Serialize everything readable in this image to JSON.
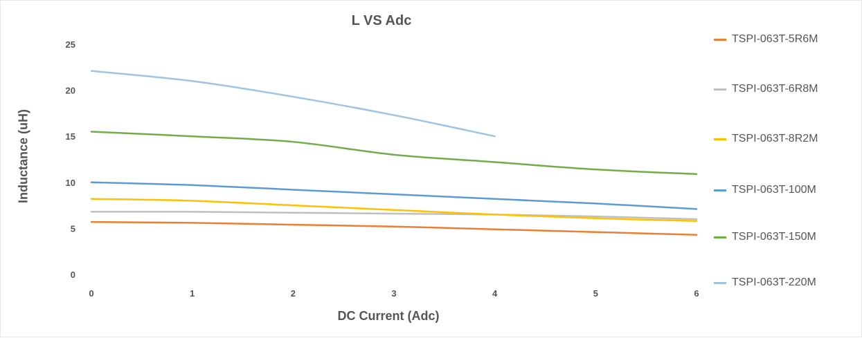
{
  "chart_data": {
    "type": "line",
    "title": "L VS Adc",
    "xlabel": "DC Current (Adc)",
    "ylabel": "Inductance (uH)",
    "xlim": [
      0,
      6
    ],
    "ylim": [
      0,
      25
    ],
    "x_ticks": [
      "0",
      "1",
      "2",
      "3",
      "4",
      "5",
      "6"
    ],
    "y_ticks": [
      "0",
      "5",
      "10",
      "15",
      "20",
      "25"
    ],
    "grid": false,
    "legend_position": "right",
    "series": [
      {
        "name": "TSPI-063T-5R6M",
        "color": "#ED7D31",
        "x": [
          0,
          1,
          2,
          3,
          4,
          5,
          6
        ],
        "y": [
          5.7,
          5.6,
          5.4,
          5.2,
          4.9,
          4.6,
          4.3
        ]
      },
      {
        "name": "TSPI-063T-6R8M",
        "color": "#BFBFBF",
        "x": [
          0,
          1,
          2,
          3,
          4,
          5,
          6
        ],
        "y": [
          6.8,
          6.8,
          6.7,
          6.6,
          6.5,
          6.3,
          6.0
        ]
      },
      {
        "name": "TSPI-063T-8R2M",
        "color": "#FFC000",
        "x": [
          0,
          1,
          2,
          3,
          4,
          5,
          6
        ],
        "y": [
          8.2,
          8.0,
          7.5,
          7.0,
          6.5,
          6.1,
          5.8
        ]
      },
      {
        "name": "TSPI-063T-100M",
        "color": "#5B9BD5",
        "x": [
          0,
          1,
          2,
          3,
          4,
          5,
          6
        ],
        "y": [
          10.0,
          9.7,
          9.2,
          8.7,
          8.2,
          7.7,
          7.1
        ]
      },
      {
        "name": "TSPI-063T-150M",
        "color": "#70AD47",
        "x": [
          0,
          1,
          2,
          3,
          4,
          5,
          6
        ],
        "y": [
          15.5,
          15.0,
          14.4,
          13.0,
          12.2,
          11.4,
          10.9
        ]
      },
      {
        "name": "TSPI-063T-220M",
        "color": "#9DC3E6",
        "x": [
          0,
          1,
          2,
          3,
          4
        ],
        "y": [
          22.1,
          21.0,
          19.3,
          17.3,
          15.0
        ]
      }
    ]
  }
}
